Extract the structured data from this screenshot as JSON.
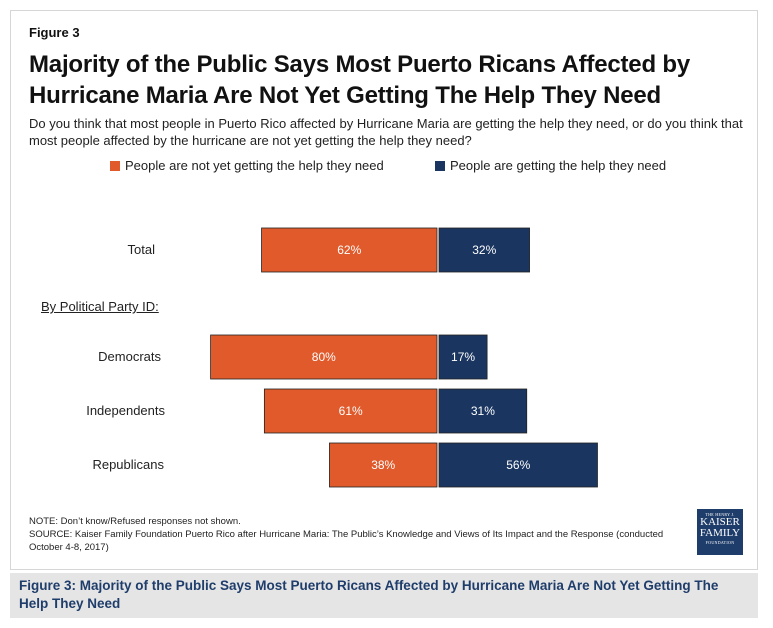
{
  "figure_label": "Figure 3",
  "title": "Majority of the Public Says Most Puerto Ricans Affected by Hurricane Maria Are Not Yet Getting The Help They Need",
  "subtitle": "Do you think that most people in Puerto Rico affected by Hurricane Maria are getting the help they need, or do you think that most people affected by the hurricane are not yet getting the help they need?",
  "section_label": "By Political Party ID:",
  "note": "NOTE: Don’t know/Refused responses not shown.",
  "source": "SOURCE: Kaiser Family Foundation Puerto Rico after Hurricane Maria: The Public’s Knowledge and Views of Its Impact and the Response (conducted October 4-8, 2017)",
  "logo": {
    "line1": "THE HENRY J.",
    "line2": "KAISER",
    "line3": "FAMILY",
    "line4": "FOUNDATION"
  },
  "caption": "Figure 3: Majority of the Public Says Most Puerto Ricans Affected by Hurricane Maria Are Not Yet Getting The Help They Need",
  "colors": {
    "not_getting": "#e05a2b",
    "getting": "#1a3560"
  },
  "chart_data": {
    "type": "bar",
    "orientation": "diverging-horizontal",
    "categories": [
      "Total",
      "Democrats",
      "Independents",
      "Republicans"
    ],
    "series": [
      {
        "name": "People are not yet getting the help they need",
        "values": [
          62,
          80,
          61,
          38
        ],
        "labels": [
          "62%",
          "80%",
          "61%",
          "38%"
        ],
        "color": "#e05a2b"
      },
      {
        "name": "People are getting the help they need",
        "values": [
          32,
          17,
          31,
          56
        ],
        "labels": [
          "32%",
          "17%",
          "31%",
          "56%"
        ],
        "color": "#1a3560"
      }
    ],
    "legend_position": "top",
    "grid": false
  }
}
